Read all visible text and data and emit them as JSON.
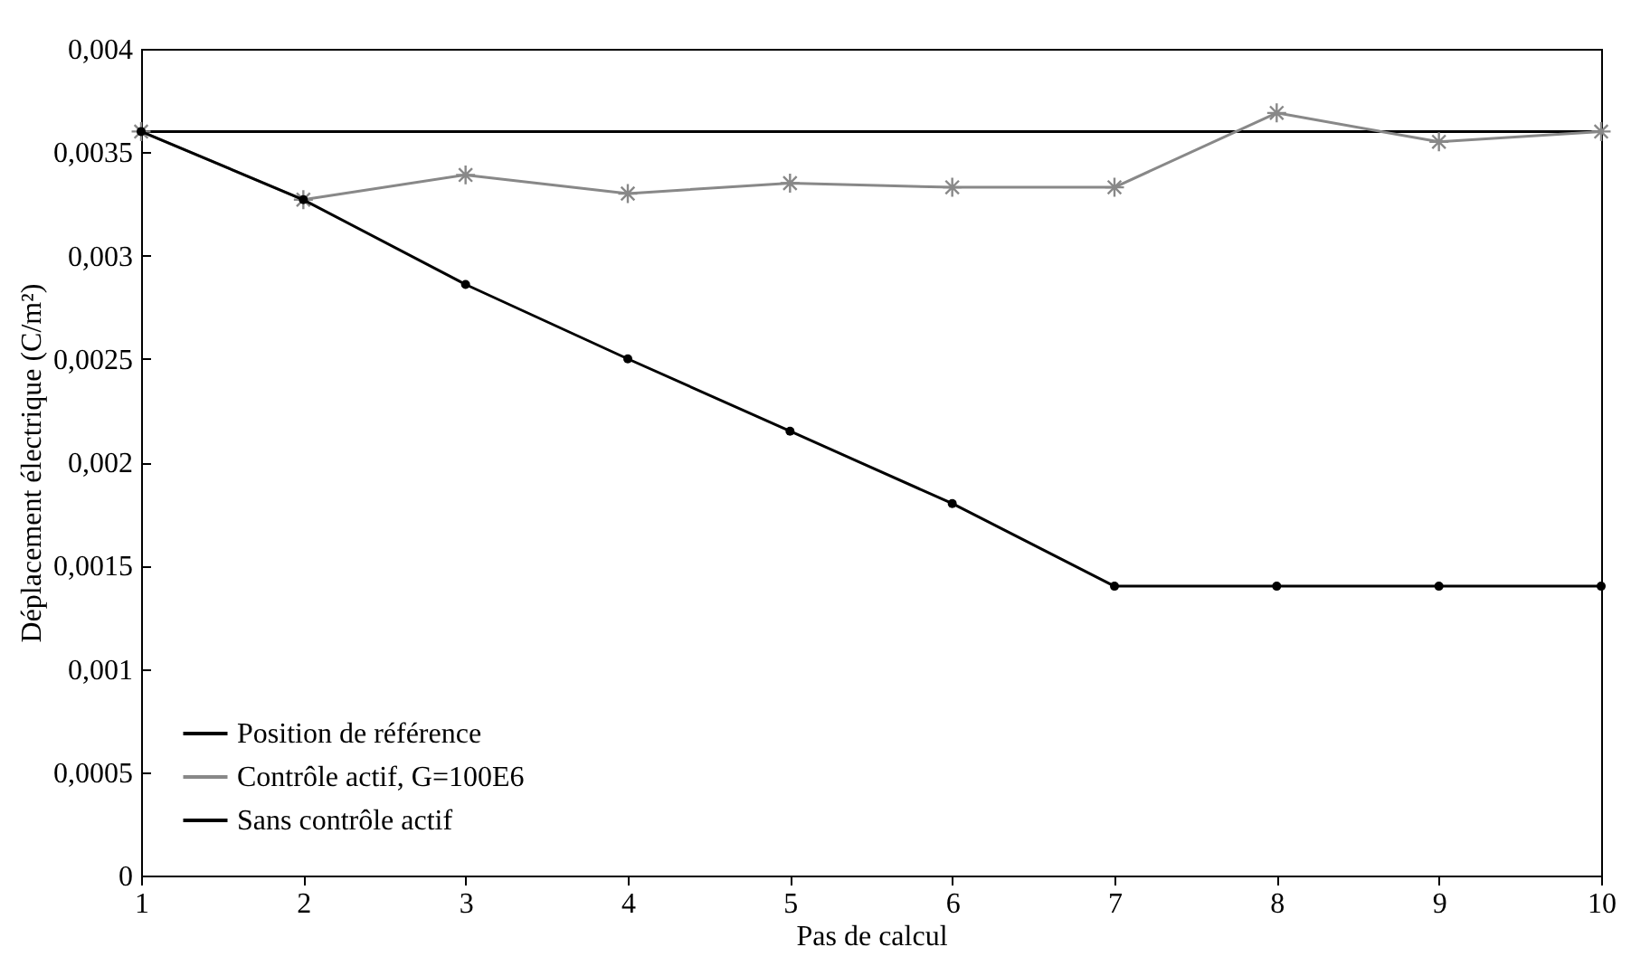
{
  "chart_data": {
    "type": "line",
    "xlabel": "Pas de calcul",
    "ylabel": "Déplacement électrique (C/m²)",
    "x": [
      1,
      2,
      3,
      4,
      5,
      6,
      7,
      8,
      9,
      10
    ],
    "series": [
      {
        "name": "Position de référence",
        "color": "#000000",
        "marker": "none",
        "values": [
          0.0036,
          0.0036,
          0.0036,
          0.0036,
          0.0036,
          0.0036,
          0.0036,
          0.0036,
          0.0036,
          0.0036
        ]
      },
      {
        "name": "Contrôle actif, G=100E6",
        "color": "#888888",
        "marker": "cross",
        "values": [
          0.0036,
          0.00327,
          0.00339,
          0.0033,
          0.00335,
          0.00333,
          0.00333,
          0.00369,
          0.00355,
          0.0036
        ]
      },
      {
        "name": "Sans contrôle actif",
        "color": "#000000",
        "marker": "circle",
        "values": [
          0.0036,
          0.00327,
          0.00286,
          0.0025,
          0.00215,
          0.0018,
          0.0014,
          0.0014,
          0.0014,
          0.0014
        ]
      }
    ],
    "xlim": [
      1,
      10
    ],
    "xticks": [
      1,
      2,
      3,
      4,
      5,
      6,
      7,
      8,
      9,
      10
    ],
    "ylim": [
      0,
      0.004
    ],
    "yticks": [
      {
        "value": 0,
        "label": "0"
      },
      {
        "value": 0.0005,
        "label": "0,0005"
      },
      {
        "value": 0.001,
        "label": "0,001"
      },
      {
        "value": 0.0015,
        "label": "0,0015"
      },
      {
        "value": 0.002,
        "label": "0,002"
      },
      {
        "value": 0.0025,
        "label": "0,0025"
      },
      {
        "value": 0.003,
        "label": "0,003"
      },
      {
        "value": 0.0035,
        "label": "0,0035"
      },
      {
        "value": 0.004,
        "label": "0,004"
      }
    ],
    "grid": false,
    "legend": "bottom left",
    "line_style": "solid"
  }
}
